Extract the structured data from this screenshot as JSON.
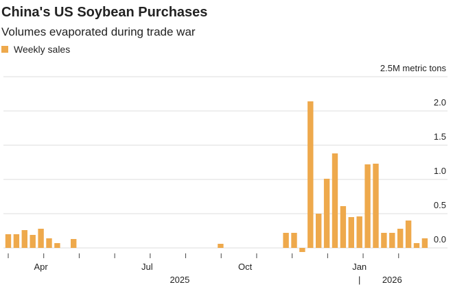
{
  "chart_data": {
    "type": "bar",
    "title": "China's US Soybean Purchases",
    "subtitle": "Volumes evaporated during trade war",
    "series": [
      {
        "name": "Weekly sales",
        "color": "#eea94c",
        "values": [
          0.2,
          0.2,
          0.26,
          0.19,
          0.28,
          0.14,
          0.07,
          null,
          0.13,
          null,
          null,
          null,
          null,
          null,
          null,
          null,
          null,
          null,
          null,
          null,
          null,
          null,
          null,
          null,
          null,
          null,
          0.06,
          null,
          null,
          null,
          null,
          null,
          null,
          null,
          0.22,
          0.22,
          -0.06,
          2.14,
          0.5,
          1.01,
          1.38,
          0.61,
          0.45,
          0.46,
          1.22,
          1.23,
          0.22,
          0.22,
          0.28,
          0.4,
          0.07,
          0.14
        ]
      }
    ],
    "categories": [
      null,
      null,
      null,
      null,
      "Apr",
      null,
      null,
      null,
      null,
      null,
      null,
      null,
      null,
      null,
      null,
      null,
      null,
      "Jul",
      null,
      null,
      null,
      null,
      null,
      null,
      null,
      null,
      null,
      null,
      null,
      "Oct",
      null,
      null,
      null,
      null,
      null,
      null,
      null,
      null,
      null,
      null,
      null,
      null,
      null,
      "Jan",
      null,
      null,
      null,
      null,
      null,
      null,
      null,
      null
    ],
    "years": [
      null,
      null,
      null,
      null,
      null,
      null,
      null,
      null,
      null,
      null,
      null,
      null,
      null,
      null,
      null,
      null,
      null,
      null,
      null,
      null,
      null,
      "2025",
      null,
      null,
      null,
      null,
      null,
      null,
      null,
      null,
      null,
      null,
      null,
      null,
      null,
      null,
      null,
      null,
      null,
      null,
      null,
      null,
      null,
      "|",
      null,
      null,
      null,
      "2026",
      null,
      null,
      null,
      null
    ],
    "ylim": [
      0,
      2.5
    ],
    "yticks": [
      {
        "value": 0,
        "label": "0.0"
      },
      0.5,
      {
        "value": 1,
        "label": "1.0"
      },
      1.5,
      {
        "value": 2,
        "label": "2.0"
      },
      {
        "value": 2.5,
        "label": "2.5M metric tons"
      }
    ],
    "grid": true
  }
}
